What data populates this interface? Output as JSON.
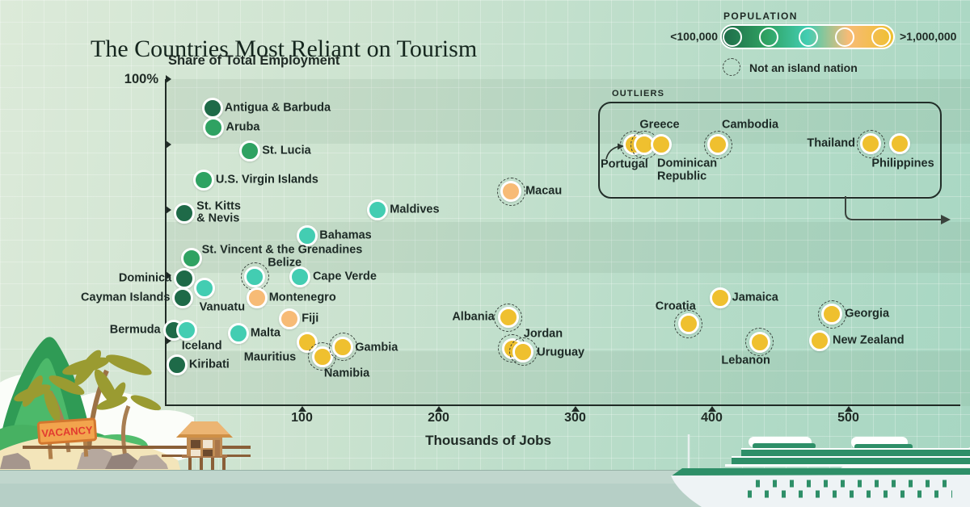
{
  "title": "The Countries Most Reliant on Tourism",
  "axes": {
    "y_label": "Share of Total Employment",
    "y_max_tick": "100%",
    "y_ticks_pct": [
      100,
      80,
      60,
      40,
      20
    ],
    "x_ticks": [
      100,
      200,
      300,
      400,
      500
    ],
    "x_label": "Thousands of Jobs"
  },
  "legend": {
    "title": "POPULATION",
    "min_label": "<100,000",
    "max_label": ">1,000,000",
    "dashed_label": "Not an island nation"
  },
  "colors": {
    "xs": "#1e6a48",
    "s": "#2fa262",
    "m": "#43cdb2",
    "l": "#f7bb76",
    "xl": "#efc02f",
    "ink": "#202b26"
  },
  "outliers_box": {
    "label": "OUTLIERS"
  },
  "decor": {
    "vacancy_sign": "VACANCY"
  },
  "chart_data": {
    "type": "scatter",
    "title": "The Countries Most Reliant on Tourism",
    "xlabel": "Thousands of Jobs",
    "ylabel": "Share of Total Employment (%)",
    "xlim": [
      0,
      580
    ],
    "ylim": [
      0,
      100
    ],
    "grid": true,
    "color_scale": "population: <100,000 dark green to >1,000,000 yellow",
    "dashed_marker_meaning": "Not an island nation",
    "points": [
      {
        "name": "Antigua & Barbuda",
        "jobs_thousands": 34.5,
        "share_pct": 91,
        "pop": "xs",
        "island": true,
        "label": [
          15,
          0,
          "l"
        ]
      },
      {
        "name": "Aruba",
        "jobs_thousands": 35.5,
        "share_pct": 85,
        "pop": "s",
        "island": true,
        "label": [
          15,
          0,
          "l"
        ]
      },
      {
        "name": "St. Lucia",
        "jobs_thousands": 62,
        "share_pct": 78,
        "pop": "s",
        "island": true,
        "label": [
          15,
          0,
          "l"
        ]
      },
      {
        "name": "U.S. Virgin Islands",
        "jobs_thousands": 28,
        "share_pct": 69,
        "pop": "s",
        "island": true,
        "label": [
          15,
          0,
          "l"
        ]
      },
      {
        "name": "St. Kitts & Nevis",
        "display": "St. Kitts\n& Nevis",
        "jobs_thousands": 14,
        "share_pct": 59,
        "pop": "xs",
        "island": true,
        "label": [
          15,
          0,
          "l"
        ]
      },
      {
        "name": "Maldives",
        "jobs_thousands": 155.5,
        "share_pct": 60,
        "pop": "m",
        "island": true,
        "label": [
          15,
          0,
          "l"
        ]
      },
      {
        "name": "Bahamas",
        "jobs_thousands": 104,
        "share_pct": 52,
        "pop": "m",
        "island": true,
        "label": [
          15,
          0,
          "l"
        ]
      },
      {
        "name": "St. Vincent & the Grenadines",
        "jobs_thousands": 19,
        "share_pct": 45,
        "pop": "s",
        "island": true,
        "label": [
          13,
          -10,
          "l"
        ]
      },
      {
        "name": "Belize",
        "jobs_thousands": 65.5,
        "share_pct": 39.5,
        "pop": "m",
        "island": false,
        "label": [
          16,
          -17,
          "l"
        ]
      },
      {
        "name": "Cape Verde",
        "jobs_thousands": 98.5,
        "share_pct": 39.5,
        "pop": "m",
        "island": true,
        "label": [
          16,
          0,
          "l"
        ]
      },
      {
        "name": "Dominica",
        "jobs_thousands": 14,
        "share_pct": 39,
        "pop": "xs",
        "island": true,
        "label": [
          -16,
          0,
          "r"
        ]
      },
      {
        "name": "Cayman Islands",
        "jobs_thousands": 13,
        "share_pct": 33,
        "pop": "xs",
        "island": true,
        "label": [
          -16,
          0,
          "r"
        ]
      },
      {
        "name": "Vanuatu",
        "jobs_thousands": 28.5,
        "share_pct": 36,
        "pop": "m",
        "island": true,
        "label": [
          -6,
          24,
          "l"
        ]
      },
      {
        "name": "Montenegro",
        "jobs_thousands": 67,
        "share_pct": 33,
        "pop": "l",
        "island": true,
        "label": [
          15,
          0,
          "l"
        ]
      },
      {
        "name": "Fiji",
        "jobs_thousands": 91,
        "share_pct": 26.5,
        "pop": "l",
        "island": true,
        "label": [
          15,
          0,
          "l"
        ]
      },
      {
        "name": "Bermuda",
        "jobs_thousands": 6,
        "share_pct": 23,
        "pop": "xs",
        "island": true,
        "label": [
          -16,
          0,
          "r"
        ]
      },
      {
        "name": "Iceland",
        "jobs_thousands": 15.5,
        "share_pct": 23,
        "pop": "m",
        "island": true,
        "label": [
          -6,
          20,
          "l"
        ]
      },
      {
        "name": "Malta",
        "jobs_thousands": 53.5,
        "share_pct": 22,
        "pop": "m",
        "island": true,
        "label": [
          15,
          0,
          "l"
        ]
      },
      {
        "name": "Mauritius",
        "jobs_thousands": 104,
        "share_pct": 19.5,
        "pop": "xl",
        "island": true,
        "label": [
          -14,
          19,
          "r"
        ]
      },
      {
        "name": "Namibia",
        "jobs_thousands": 115,
        "share_pct": 15,
        "pop": "xl",
        "island": false,
        "label": [
          2,
          21,
          "l"
        ]
      },
      {
        "name": "Gambia",
        "jobs_thousands": 130,
        "share_pct": 18,
        "pop": "xl",
        "island": false,
        "label": [
          15,
          1,
          "l"
        ]
      },
      {
        "name": "Kiribati",
        "jobs_thousands": 8.5,
        "share_pct": 12.5,
        "pop": "xs",
        "island": true,
        "label": [
          15,
          0,
          "l"
        ]
      },
      {
        "name": "Macau",
        "jobs_thousands": 253,
        "share_pct": 65.5,
        "pop": "l",
        "island": false,
        "label": [
          18,
          0,
          "l"
        ]
      },
      {
        "name": "Albania",
        "jobs_thousands": 251,
        "share_pct": 27,
        "pop": "xl",
        "island": false,
        "label": [
          -17,
          0,
          "r"
        ]
      },
      {
        "name": "Jordan",
        "jobs_thousands": 254,
        "share_pct": 17.5,
        "pop": "xl",
        "island": false,
        "label": [
          14,
          -18,
          "l"
        ]
      },
      {
        "name": "Uruguay",
        "jobs_thousands": 262,
        "share_pct": 16.5,
        "pop": "xl",
        "island": false,
        "label": [
          17,
          1,
          "l"
        ]
      },
      {
        "name": "Croatia",
        "jobs_thousands": 383,
        "share_pct": 25,
        "pop": "xl",
        "island": false,
        "label": [
          9,
          -21,
          "r"
        ]
      },
      {
        "name": "Jamaica",
        "jobs_thousands": 406,
        "share_pct": 33,
        "pop": "xl",
        "island": true,
        "label": [
          15,
          0,
          "l"
        ]
      },
      {
        "name": "Lebanon",
        "jobs_thousands": 435,
        "share_pct": 19.5,
        "pop": "xl",
        "island": false,
        "label": [
          -17,
          23,
          "c"
        ]
      },
      {
        "name": "Georgia",
        "jobs_thousands": 488,
        "share_pct": 28,
        "pop": "xl",
        "island": false,
        "label": [
          16,
          0,
          "l"
        ]
      },
      {
        "name": "New Zealand",
        "jobs_thousands": 479,
        "share_pct": 20,
        "pop": "xl",
        "island": true,
        "label": [
          16,
          0,
          "l"
        ]
      }
    ],
    "outliers": [
      {
        "name": "Portugal",
        "pop": "xl",
        "island": false,
        "bx": 784,
        "by": 179,
        "label": [
          -41,
          25,
          "l"
        ]
      },
      {
        "name": "Greece",
        "pop": "xl",
        "island": false,
        "bx": 797,
        "by": 179,
        "label": [
          19,
          -24,
          "c"
        ]
      },
      {
        "name": "Dominican Republic",
        "display": "Dominican\nRepublic",
        "pop": "xl",
        "island": true,
        "bx": 818,
        "by": 179,
        "label": [
          -5,
          32,
          "l"
        ]
      },
      {
        "name": "Cambodia",
        "pop": "xl",
        "island": false,
        "bx": 888,
        "by": 179,
        "label": [
          5,
          -24,
          "l"
        ]
      },
      {
        "name": "Thailand",
        "pop": "xl",
        "island": false,
        "bx": 1077,
        "by": 178,
        "label": [
          -19,
          0,
          "r"
        ]
      },
      {
        "name": "Philippines",
        "pop": "xl",
        "island": true,
        "bx": 1113,
        "by": 178,
        "label": [
          4,
          25,
          "c"
        ]
      }
    ]
  }
}
